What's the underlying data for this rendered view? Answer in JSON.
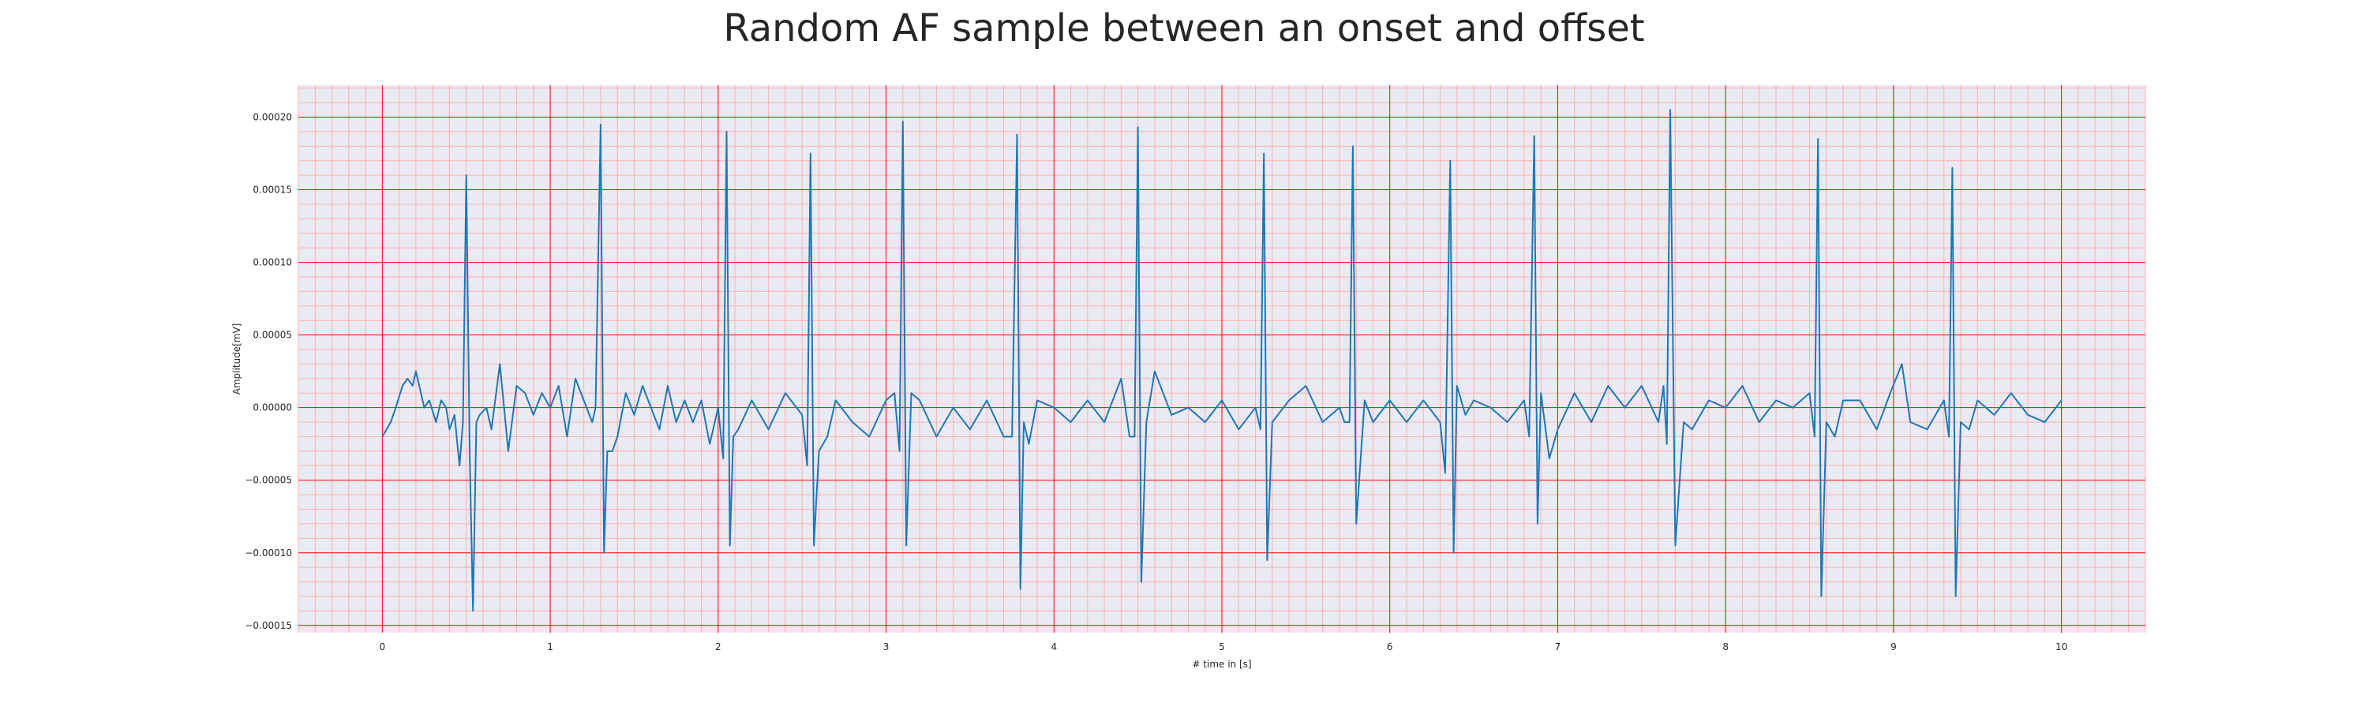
{
  "chart_data": {
    "type": "line",
    "title": "Random AF sample between an onset and offset",
    "xlabel": "# time in [s]",
    "ylabel": "Amplitude[mV]",
    "xlim": [
      -0.5,
      10.5
    ],
    "ylim": [
      -0.000155,
      0.000222
    ],
    "x_ticks": [
      0,
      1,
      2,
      3,
      4,
      5,
      6,
      7,
      8,
      9,
      10
    ],
    "x_tick_labels": [
      "0",
      "1",
      "2",
      "3",
      "4",
      "5",
      "6",
      "7",
      "8",
      "9",
      "10"
    ],
    "y_ticks": [
      -0.00015,
      -0.0001,
      -5e-05,
      0,
      5e-05,
      0.0001,
      0.00015,
      0.0002
    ],
    "y_tick_labels": [
      "−0.00015",
      "−0.00010",
      "−0.00005",
      "0.00000",
      "0.00005",
      "0.00010",
      "0.00015",
      "0.00020"
    ],
    "grid": true,
    "minor_grid": true,
    "colors": {
      "background": "#eaeaf2",
      "major_grid": "#ff0000",
      "minor_grid": "#ffb0b0",
      "line": "#1f77b4"
    },
    "series": [
      {
        "x": [
          0.0,
          0.05,
          0.08,
          0.12,
          0.15,
          0.18,
          0.2,
          0.23,
          0.25,
          0.28,
          0.32,
          0.35,
          0.38,
          0.4,
          0.43,
          0.46,
          0.48,
          0.5,
          0.52,
          0.54,
          0.56,
          0.58,
          0.62,
          0.65,
          0.7,
          0.75,
          0.8,
          0.85,
          0.9,
          0.95,
          1.0,
          1.05,
          1.1,
          1.15,
          1.2,
          1.25,
          1.27,
          1.3,
          1.32,
          1.34,
          1.37,
          1.4,
          1.45,
          1.5,
          1.55,
          1.6,
          1.65,
          1.7,
          1.75,
          1.8,
          1.85,
          1.9,
          1.95,
          2.0,
          2.03,
          2.05,
          2.07,
          2.09,
          2.12,
          2.2,
          2.3,
          2.4,
          2.5,
          2.53,
          2.55,
          2.57,
          2.6,
          2.65,
          2.7,
          2.8,
          2.9,
          3.0,
          3.05,
          3.08,
          3.1,
          3.12,
          3.15,
          3.2,
          3.3,
          3.4,
          3.5,
          3.6,
          3.7,
          3.75,
          3.78,
          3.8,
          3.82,
          3.85,
          3.9,
          4.0,
          4.1,
          4.2,
          4.3,
          4.4,
          4.45,
          4.48,
          4.5,
          4.52,
          4.55,
          4.6,
          4.7,
          4.8,
          4.9,
          5.0,
          5.1,
          5.2,
          5.23,
          5.25,
          5.27,
          5.3,
          5.4,
          5.5,
          5.6,
          5.7,
          5.73,
          5.76,
          5.78,
          5.8,
          5.85,
          5.9,
          6.0,
          6.1,
          6.2,
          6.3,
          6.33,
          6.36,
          6.38,
          6.4,
          6.45,
          6.5,
          6.6,
          6.7,
          6.8,
          6.83,
          6.86,
          6.88,
          6.9,
          6.95,
          7.0,
          7.1,
          7.2,
          7.3,
          7.4,
          7.5,
          7.6,
          7.63,
          7.65,
          7.67,
          7.7,
          7.75,
          7.8,
          7.9,
          8.0,
          8.1,
          8.2,
          8.3,
          8.4,
          8.5,
          8.53,
          8.55,
          8.57,
          8.6,
          8.65,
          8.7,
          8.8,
          8.9,
          8.98,
          9.05,
          9.1,
          9.2,
          9.3,
          9.33,
          9.35,
          9.37,
          9.4,
          9.45,
          9.5,
          9.6,
          9.7,
          9.8,
          9.9,
          10.0
        ],
        "y": [
          -2e-05,
          -1e-05,
          0.0,
          1.5e-05,
          2e-05,
          1.5e-05,
          2.5e-05,
          1e-05,
          0.0,
          5e-06,
          -1e-05,
          5e-06,
          0.0,
          -1.5e-05,
          -5e-06,
          -4e-05,
          -1e-05,
          0.00016,
          -3e-05,
          -0.00014,
          -1e-05,
          -5e-06,
          0.0,
          -1.5e-05,
          3e-05,
          -3e-05,
          1.5e-05,
          1e-05,
          -5e-06,
          1e-05,
          0.0,
          1.5e-05,
          -2e-05,
          2e-05,
          5e-06,
          -1e-05,
          0.0,
          0.000195,
          -0.0001,
          -3e-05,
          -3e-05,
          -2e-05,
          1e-05,
          -5e-06,
          1.5e-05,
          0.0,
          -1.5e-05,
          1.5e-05,
          -1e-05,
          5e-06,
          -1e-05,
          5e-06,
          -2.5e-05,
          0.0,
          -3.5e-05,
          0.00019,
          -9.5e-05,
          -2e-05,
          -1.5e-05,
          5e-06,
          -1.5e-05,
          1e-05,
          -5e-06,
          -4e-05,
          0.000175,
          -9.5e-05,
          -3e-05,
          -2e-05,
          5e-06,
          -1e-05,
          -2e-05,
          5e-06,
          1e-05,
          -3e-05,
          0.000197,
          -9.5e-05,
          1e-05,
          5e-06,
          -2e-05,
          0.0,
          -1.5e-05,
          5e-06,
          -2e-05,
          -2e-05,
          0.000188,
          -0.000125,
          -1e-05,
          -2.5e-05,
          5e-06,
          0.0,
          -1e-05,
          5e-06,
          -1e-05,
          2e-05,
          -2e-05,
          -2e-05,
          0.000193,
          -0.00012,
          -1e-05,
          2.5e-05,
          -5e-06,
          0.0,
          -1e-05,
          5e-06,
          -1.5e-05,
          0.0,
          -1.5e-05,
          0.000175,
          -0.000105,
          -1e-05,
          5e-06,
          1.5e-05,
          -1e-05,
          0.0,
          -1e-05,
          -1e-05,
          0.00018,
          -8e-05,
          5e-06,
          -1e-05,
          5e-06,
          -1e-05,
          5e-06,
          -1e-05,
          -4.5e-05,
          0.00017,
          -0.0001,
          1.5e-05,
          -5e-06,
          5e-06,
          0.0,
          -1e-05,
          5e-06,
          -2e-05,
          0.000187,
          -8e-05,
          1e-05,
          -3.5e-05,
          -1.5e-05,
          1e-05,
          -1e-05,
          1.5e-05,
          0.0,
          1.5e-05,
          -1e-05,
          1.5e-05,
          -2.5e-05,
          0.000205,
          -9.5e-05,
          -1e-05,
          -1.5e-05,
          5e-06,
          0.0,
          1.5e-05,
          -1e-05,
          5e-06,
          0.0,
          1e-05,
          -2e-05,
          0.000185,
          -0.00013,
          -1e-05,
          -2e-05,
          5e-06,
          5e-06,
          -1.5e-05,
          1e-05,
          3e-05,
          -1e-05,
          -1.5e-05,
          5e-06,
          -2e-05,
          0.000165,
          -0.00013,
          -1e-05,
          -1.5e-05,
          5e-06,
          -5e-06,
          1e-05,
          -5e-06,
          -1e-05,
          5e-06
        ]
      }
    ]
  }
}
